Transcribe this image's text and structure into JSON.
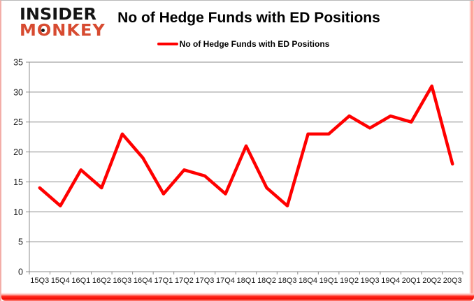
{
  "logo": {
    "line1": "INSIDER",
    "line2": "MONKEY"
  },
  "title": "No of Hedge Funds with ED Positions",
  "legend": {
    "label": "No of Hedge Funds with ED Positions",
    "line_color": "#ff0000"
  },
  "chart_data": {
    "type": "line",
    "title": "No of Hedge Funds with ED Positions",
    "categories": [
      "15Q3",
      "15Q4",
      "16Q1",
      "16Q2",
      "16Q3",
      "16Q4",
      "17Q1",
      "17Q2",
      "17Q3",
      "17Q4",
      "18Q1",
      "18Q2",
      "18Q3",
      "18Q4",
      "19Q1",
      "19Q2",
      "19Q3",
      "19Q4",
      "20Q1",
      "20Q2",
      "20Q3"
    ],
    "series": [
      {
        "name": "No of Hedge Funds with ED Positions",
        "color": "#ff0000",
        "values": [
          14,
          11,
          17,
          14,
          23,
          19,
          13,
          17,
          16,
          13,
          21,
          14,
          11,
          23,
          23,
          26,
          24,
          26,
          25,
          31,
          18
        ]
      }
    ],
    "xlabel": "",
    "ylabel": "",
    "ylim": [
      0,
      35
    ],
    "ytick_step": 5,
    "grid": true,
    "legend_position": "top-center",
    "line_width": 4.5,
    "grid_color": "#8c8c8c",
    "axis_color": "#8c8c8c",
    "axis_text_color": "#1a1a1a"
  },
  "colors": {
    "series_red": "#ff0000",
    "logo_black": "#141414",
    "logo_red": "#d74b31",
    "grid": "#8c8c8c",
    "text": "#1a1a1a",
    "frame_glow_red": "#f30d04"
  }
}
